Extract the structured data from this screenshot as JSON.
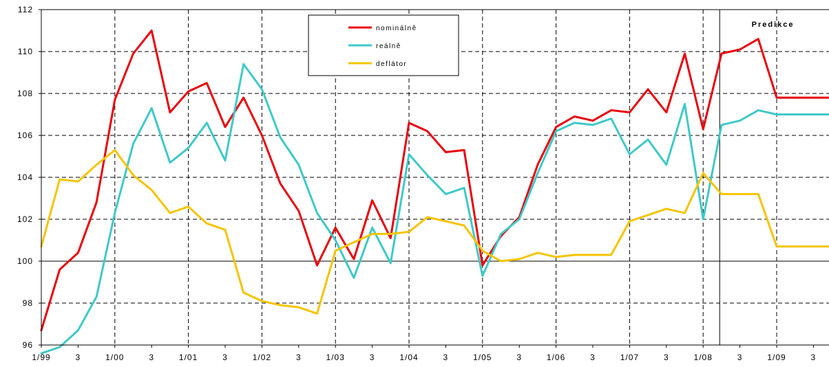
{
  "chart_data": {
    "type": "line",
    "ylim": [
      96,
      112
    ],
    "yticks": [
      96,
      98,
      100,
      102,
      104,
      106,
      108,
      110,
      112
    ],
    "x_labels": [
      "1/99",
      "3",
      "1/00",
      "3",
      "1/01",
      "3",
      "1/02",
      "3",
      "1/03",
      "3",
      "1/04",
      "3",
      "1/05",
      "3",
      "1/06",
      "3",
      "1/07",
      "3",
      "1/08",
      "3",
      "1/09",
      "3"
    ],
    "x_periods": [
      "1/99",
      "2/99",
      "3/99",
      "4/99",
      "1/00",
      "2/00",
      "3/00",
      "4/00",
      "1/01",
      "2/01",
      "3/01",
      "4/01",
      "1/02",
      "2/02",
      "3/02",
      "4/02",
      "1/03",
      "2/03",
      "3/03",
      "4/03",
      "1/04",
      "2/04",
      "3/04",
      "4/04",
      "1/05",
      "2/05",
      "3/05",
      "4/05",
      "1/06",
      "2/06",
      "3/06",
      "4/06",
      "1/07",
      "2/07",
      "3/07",
      "4/07",
      "1/08",
      "2/08",
      "3/08",
      "4/08",
      "1/09",
      "2/09",
      "3/09",
      "4/09"
    ],
    "reference_line": 100,
    "prediction_label": "Predikce",
    "series": [
      {
        "name": "nominálně",
        "color": "#e8000b",
        "values": [
          96.7,
          99.6,
          100.4,
          102.8,
          107.7,
          109.9,
          111.0,
          107.1,
          108.1,
          108.5,
          106.4,
          107.8,
          106.0,
          103.7,
          102.4,
          99.8,
          101.6,
          100.1,
          102.9,
          101.1,
          106.6,
          106.2,
          105.2,
          105.3,
          99.8,
          101.2,
          102.1,
          104.6,
          106.4,
          106.9,
          106.7,
          107.2,
          107.1,
          108.2,
          107.1,
          109.9,
          106.3,
          109.9,
          110.1,
          110.6,
          107.8,
          107.8,
          107.8,
          107.8
        ]
      },
      {
        "name": "reálně",
        "color": "#40c8c8",
        "values": [
          95.6,
          95.9,
          96.7,
          98.3,
          102.3,
          105.6,
          107.3,
          104.7,
          105.4,
          106.6,
          104.8,
          109.4,
          108.2,
          105.9,
          104.6,
          102.3,
          101.0,
          99.2,
          101.6,
          99.9,
          105.1,
          104.1,
          103.2,
          103.5,
          99.3,
          101.3,
          102.0,
          104.2,
          106.2,
          106.6,
          106.5,
          106.8,
          105.1,
          105.8,
          104.6,
          107.5,
          102.0,
          106.5,
          106.7,
          107.2,
          107.0,
          107.0,
          107.0,
          107.0
        ]
      },
      {
        "name": "deflátor",
        "color": "#f5c400",
        "values": [
          100.7,
          103.9,
          103.8,
          104.6,
          105.3,
          104.1,
          103.4,
          102.3,
          102.6,
          101.8,
          101.5,
          98.5,
          98.1,
          97.9,
          97.8,
          97.5,
          100.5,
          100.9,
          101.3,
          101.3,
          101.4,
          102.1,
          101.9,
          101.7,
          100.5,
          100.0,
          100.1,
          100.4,
          100.2,
          100.3,
          100.3,
          100.3,
          101.9,
          102.2,
          102.5,
          102.3,
          104.2,
          103.2,
          103.2,
          103.2,
          100.7,
          100.7,
          100.7,
          100.7
        ]
      }
    ]
  }
}
